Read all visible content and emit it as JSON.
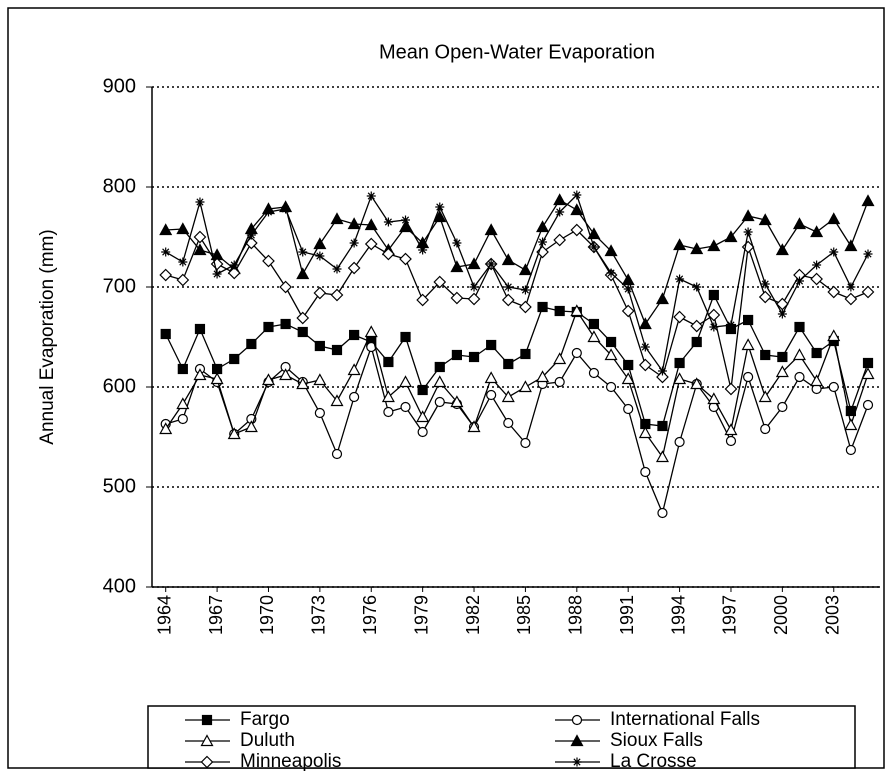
{
  "chart_data": {
    "type": "line",
    "title": "Mean Open-Water Evaporation",
    "y_label": "Annual Evaporation (mm)",
    "x": [
      1964,
      1965,
      1966,
      1967,
      1968,
      1969,
      1970,
      1971,
      1972,
      1973,
      1974,
      1975,
      1976,
      1977,
      1978,
      1979,
      1980,
      1981,
      1982,
      1983,
      1984,
      1985,
      1986,
      1987,
      1988,
      1989,
      1990,
      1991,
      1992,
      1993,
      1994,
      1995,
      1996,
      1997,
      1998,
      1999,
      2000,
      2001,
      2002,
      2003,
      2004,
      2005
    ],
    "xlim": [
      1963.2,
      2005.7
    ],
    "xticks": [
      1964,
      1967,
      1970,
      1973,
      1976,
      1979,
      1982,
      1985,
      1988,
      1991,
      1994,
      1997,
      2000,
      2003
    ],
    "ylim": [
      400,
      900
    ],
    "yticks": [
      400,
      500,
      600,
      700,
      800,
      900
    ],
    "grid": true,
    "series": [
      {
        "name": "Fargo",
        "color": "#000000",
        "marker": "square-filled",
        "values": [
          653,
          618,
          658,
          618,
          628,
          643,
          660,
          663,
          655,
          641,
          637,
          652,
          645,
          625,
          650,
          597,
          620,
          632,
          630,
          642,
          623,
          633,
          680,
          676,
          675,
          663,
          645,
          622,
          563,
          561,
          624,
          645,
          692,
          658,
          667,
          632,
          630,
          660,
          634,
          646,
          576,
          624
        ]
      },
      {
        "name": "International Falls",
        "color": "#000000",
        "marker": "circle-open",
        "values": [
          563,
          568,
          618,
          605,
          553,
          568,
          605,
          620,
          605,
          574,
          533,
          590,
          640,
          575,
          580,
          555,
          585,
          583,
          560,
          592,
          564,
          544,
          603,
          605,
          634,
          614,
          600,
          578,
          515,
          474,
          545,
          603,
          580,
          546,
          610,
          558,
          580,
          610,
          598,
          600,
          537,
          582
        ]
      },
      {
        "name": "Duluth",
        "color": "#000000",
        "marker": "triangle-open",
        "values": [
          558,
          583,
          612,
          608,
          553,
          560,
          607,
          612,
          603,
          607,
          586,
          617,
          655,
          590,
          605,
          570,
          605,
          585,
          560,
          609,
          590,
          600,
          610,
          628,
          676,
          650,
          632,
          608,
          554,
          530,
          608,
          603,
          588,
          557,
          642,
          590,
          615,
          632,
          606,
          651,
          562,
          613
        ]
      },
      {
        "name": "Sioux Falls",
        "color": "#000000",
        "marker": "triangle-filled",
        "values": [
          757,
          758,
          737,
          732,
          718,
          758,
          778,
          780,
          713,
          743,
          768,
          763,
          762,
          737,
          760,
          744,
          770,
          720,
          723,
          757,
          727,
          717,
          760,
          787,
          777,
          753,
          736,
          707,
          663,
          688,
          742,
          738,
          741,
          750,
          771,
          767,
          737,
          763,
          755,
          768,
          741,
          786
        ]
      },
      {
        "name": "Minneapolis",
        "color": "#000000",
        "marker": "diamond-open",
        "values": [
          712,
          707,
          750,
          723,
          714,
          744,
          726,
          700,
          669,
          694,
          692,
          719,
          743,
          733,
          728,
          687,
          705,
          689,
          688,
          723,
          687,
          680,
          735,
          747,
          757,
          740,
          712,
          676,
          622,
          610,
          670,
          661,
          672,
          598,
          740,
          690,
          683,
          712,
          708,
          695,
          688,
          695
        ]
      },
      {
        "name": "La Crosse",
        "color": "#000000",
        "marker": "asterisk",
        "values": [
          735,
          725,
          785,
          713,
          722,
          752,
          775,
          778,
          735,
          731,
          718,
          744,
          791,
          765,
          767,
          737,
          780,
          744,
          700,
          723,
          700,
          697,
          745,
          775,
          792,
          740,
          714,
          698,
          640,
          616,
          708,
          700,
          660,
          662,
          755,
          703,
          673,
          706,
          722,
          735,
          700,
          733
        ]
      }
    ]
  }
}
